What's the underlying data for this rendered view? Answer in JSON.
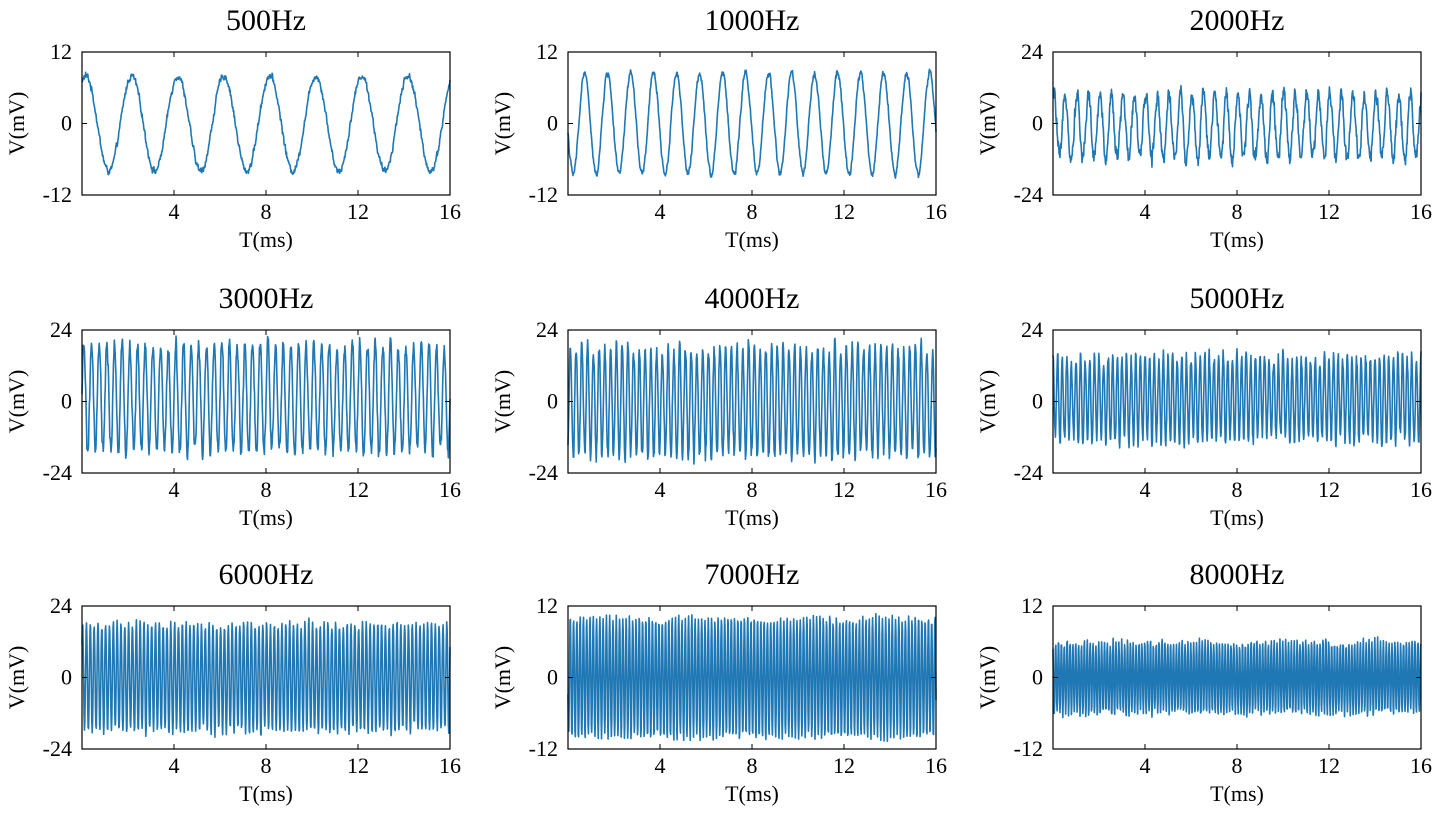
{
  "line_color": "#1f77b4",
  "chart_data": [
    {
      "type": "line",
      "title": "500Hz",
      "frequency_hz": 500,
      "amplitude_mv": 8,
      "offset_mv": 0,
      "phase_deg": 60,
      "noise_mv": 0.5,
      "xlabel": "T(ms)",
      "ylabel": "V(mV)",
      "xlim": [
        0,
        16
      ],
      "ylim": [
        -12,
        12
      ],
      "xticks": [
        4,
        8,
        12,
        16
      ],
      "xtick_labels": [
        "4",
        "8",
        "12",
        "16"
      ],
      "yticks": [
        -12,
        0,
        12
      ],
      "ytick_labels": [
        "-12",
        "0",
        "12"
      ]
    },
    {
      "type": "line",
      "title": "1000Hz",
      "frequency_hz": 1000,
      "amplitude_mv": 8.5,
      "offset_mv": 0,
      "phase_deg": 190,
      "noise_mv": 0.5,
      "xlabel": "T(ms)",
      "ylabel": "V(mV)",
      "xlim": [
        0,
        16
      ],
      "ylim": [
        -12,
        12
      ],
      "xticks": [
        4,
        8,
        12,
        16
      ],
      "xtick_labels": [
        "4",
        "8",
        "12",
        "16"
      ],
      "yticks": [
        -12,
        0,
        12
      ],
      "ytick_labels": [
        "-12",
        "0",
        "12"
      ]
    },
    {
      "type": "line",
      "title": "2000Hz",
      "frequency_hz": 2000,
      "amplitude_mv": 11,
      "offset_mv": -1,
      "phase_deg": 60,
      "noise_mv": 2.5,
      "xlabel": "T(ms)",
      "ylabel": "V(mV)",
      "xlim": [
        0,
        16
      ],
      "ylim": [
        -24,
        24
      ],
      "xticks": [
        4,
        8,
        12,
        16
      ],
      "xtick_labels": [
        "4",
        "8",
        "12",
        "16"
      ],
      "yticks": [
        -24,
        0,
        24
      ],
      "ytick_labels": [
        "-24",
        "0",
        "24"
      ]
    },
    {
      "type": "line",
      "title": "3000Hz",
      "frequency_hz": 3000,
      "amplitude_mv": 18,
      "offset_mv": 1,
      "phase_deg": 0,
      "noise_mv": 2.5,
      "xlabel": "T(ms)",
      "ylabel": "V(mV)",
      "xlim": [
        0,
        16
      ],
      "ylim": [
        -24,
        24
      ],
      "xticks": [
        4,
        8,
        12,
        16
      ],
      "xtick_labels": [
        "4",
        "8",
        "12",
        "16"
      ],
      "yticks": [
        -24,
        0,
        24
      ],
      "ytick_labels": [
        "-24",
        "0",
        "24"
      ]
    },
    {
      "type": "line",
      "title": "4000Hz",
      "frequency_hz": 4000,
      "amplitude_mv": 18,
      "offset_mv": 0,
      "phase_deg": 300,
      "noise_mv": 2.5,
      "xlabel": "T(ms)",
      "ylabel": "V(mV)",
      "xlim": [
        0,
        16
      ],
      "ylim": [
        -24,
        24
      ],
      "xticks": [
        4,
        8,
        12,
        16
      ],
      "xtick_labels": [
        "4",
        "8",
        "12",
        "16"
      ],
      "yticks": [
        -24,
        0,
        24
      ],
      "ytick_labels": [
        "-24",
        "0",
        "24"
      ]
    },
    {
      "type": "line",
      "title": "5000Hz",
      "frequency_hz": 5000,
      "amplitude_mv": 14,
      "offset_mv": 1,
      "phase_deg": 90,
      "noise_mv": 2.5,
      "xlabel": "T(ms)",
      "ylabel": "V(mV)",
      "xlim": [
        0,
        16
      ],
      "ylim": [
        -24,
        24
      ],
      "xticks": [
        4,
        8,
        12,
        16
      ],
      "xtick_labels": [
        "4",
        "8",
        "12",
        "16"
      ],
      "yticks": [
        -24,
        0,
        24
      ],
      "ytick_labels": [
        "-24",
        "0",
        "24"
      ]
    },
    {
      "type": "line",
      "title": "6000Hz",
      "frequency_hz": 6000,
      "amplitude_mv": 18,
      "offset_mv": 0,
      "phase_deg": 30,
      "noise_mv": 1.5,
      "xlabel": "T(ms)",
      "ylabel": "V(mV)",
      "xlim": [
        0,
        16
      ],
      "ylim": [
        -24,
        24
      ],
      "xticks": [
        4,
        8,
        12,
        16
      ],
      "xtick_labels": [
        "4",
        "8",
        "12",
        "16"
      ],
      "yticks": [
        -24,
        0,
        24
      ],
      "ytick_labels": [
        "-24",
        "0",
        "24"
      ]
    },
    {
      "type": "line",
      "title": "7000Hz",
      "frequency_hz": 7000,
      "amplitude_mv": 10,
      "offset_mv": 0,
      "phase_deg": 200,
      "noise_mv": 0.6,
      "xlabel": "T(ms)",
      "ylabel": "V(mV)",
      "xlim": [
        0,
        16
      ],
      "ylim": [
        -12,
        12
      ],
      "xticks": [
        4,
        8,
        12,
        16
      ],
      "xtick_labels": [
        "4",
        "8",
        "12",
        "16"
      ],
      "yticks": [
        -12,
        0,
        12
      ],
      "ytick_labels": [
        "-12",
        "0",
        "12"
      ]
    },
    {
      "type": "line",
      "title": "8000Hz",
      "frequency_hz": 8000,
      "amplitude_mv": 6,
      "offset_mv": 0,
      "phase_deg": 120,
      "noise_mv": 0.6,
      "xlabel": "T(ms)",
      "ylabel": "V(mV)",
      "xlim": [
        0,
        16
      ],
      "ylim": [
        -12,
        12
      ],
      "xticks": [
        4,
        8,
        12,
        16
      ],
      "xtick_labels": [
        "4",
        "8",
        "12",
        "16"
      ],
      "yticks": [
        -12,
        0,
        12
      ],
      "ytick_labels": [
        "-12",
        "0",
        "12"
      ]
    }
  ]
}
